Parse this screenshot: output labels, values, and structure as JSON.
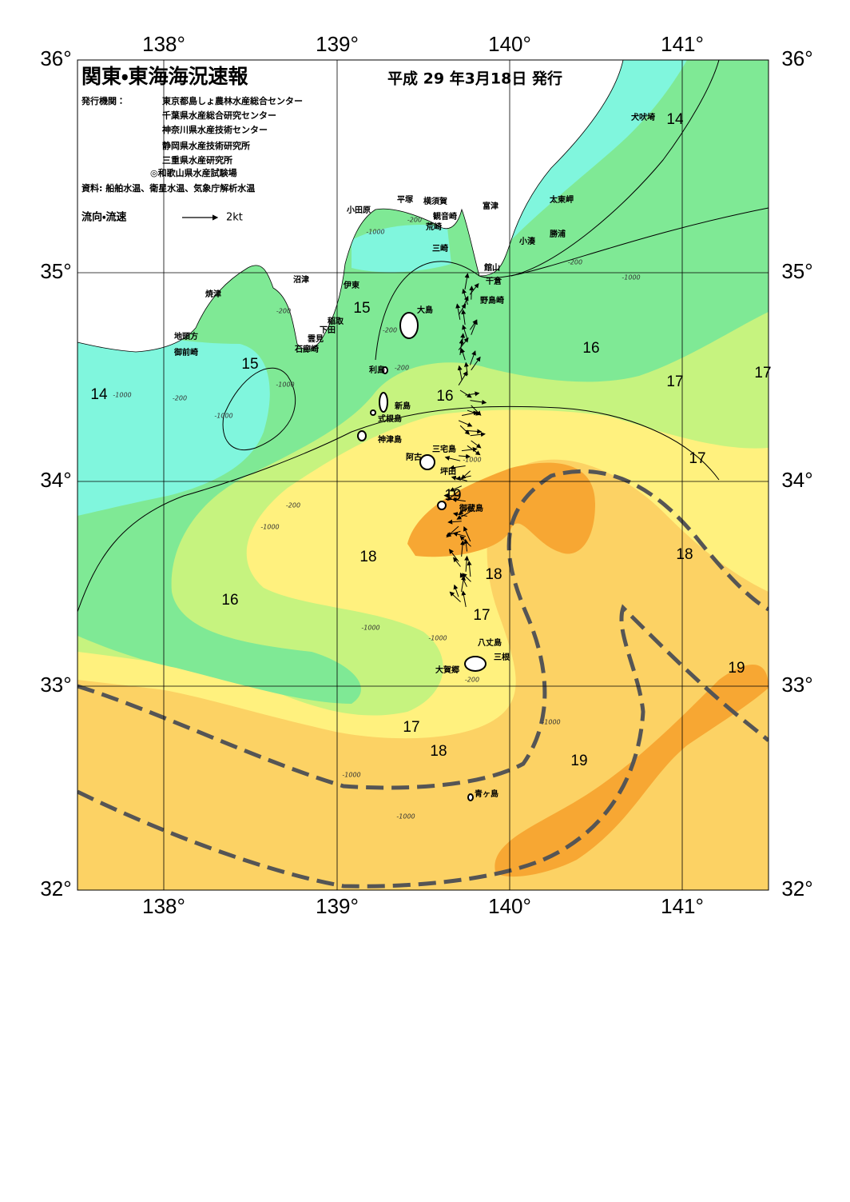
{
  "header": {
    "title": "関東・東海海況速報",
    "date": "平成 29 年3月18日 発行",
    "issuer_label": "発行機関：",
    "issuers": [
      "東京都島しょ農林水産総合センター",
      "千葉県水産総合研究センター",
      "神奈川県水産技術センター",
      "静岡県水産技術研究所",
      "三重県水産研究所",
      "◎和歌山県水産試験場"
    ],
    "source": "資料: 船舶水温、衛星水温、気象庁解析水温",
    "legend": {
      "label": "流向・流速",
      "scale": "2kt"
    }
  },
  "axes": {
    "longitude": [
      "138°",
      "139°",
      "140°",
      "141°"
    ],
    "latitude": [
      "36°",
      "35°",
      "34°",
      "33°",
      "32°"
    ]
  },
  "places": [
    "犬吠埼",
    "太東岬",
    "勝浦",
    "小湊",
    "富津",
    "館山",
    "千倉",
    "野島崎",
    "横須賀",
    "平塚",
    "観音崎",
    "荒崎",
    "三崎",
    "小田原",
    "沼津",
    "伊東",
    "焼津",
    "稲取",
    "下田",
    "雲見",
    "石廊崎",
    "地頭方",
    "御前崎",
    "大島",
    "利島",
    "新島",
    "式根島",
    "神津島",
    "三宅島",
    "阿古",
    "坪田",
    "御蔵島",
    "八丈島",
    "三根",
    "大賀郷",
    "青ヶ島"
  ],
  "temperature_labels": [
    "14",
    "14",
    "15",
    "15",
    "16",
    "16",
    "17",
    "17",
    "17",
    "19",
    "18",
    "18",
    "18",
    "16",
    "17",
    "19",
    "17",
    "18",
    "19"
  ],
  "depth_labels": [
    "-200",
    "-1000",
    "-1000",
    "-200",
    "-200",
    "-200",
    "-200",
    "-1000",
    "-200",
    "-1000",
    "-1000",
    "-200",
    "-1000",
    "-1000",
    "-1000",
    "-200",
    "-1000",
    "-1000",
    "-1000",
    "-1000"
  ]
}
